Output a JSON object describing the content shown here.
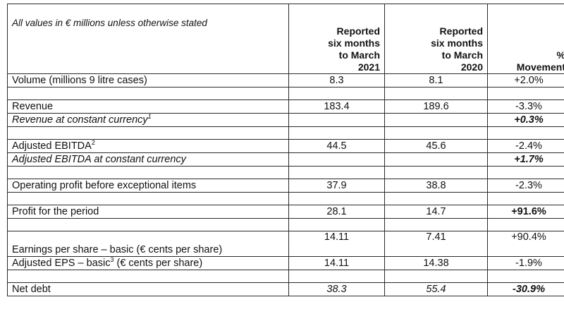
{
  "header": {
    "label": "All values in € millions unless otherwise stated",
    "col1": [
      "Reported",
      "six months",
      "to March",
      "2021"
    ],
    "col2": [
      "Reported",
      "six months",
      "to March",
      "2020"
    ],
    "col3": [
      "%",
      "Movement"
    ]
  },
  "rows": [
    {
      "label": "Volume (millions 9 litre cases)",
      "v2021": "8.3",
      "v2020": "8.1",
      "movement": "+2.0%"
    },
    {
      "label": "Revenue",
      "v2021": "183.4",
      "v2020": "189.6",
      "movement": "-3.3%"
    },
    {
      "label": "Revenue at constant currency",
      "sup": "1",
      "v2021": "",
      "v2020": "",
      "movement": "+0.3%"
    },
    {
      "label": "Adjusted EBITDA",
      "sup": "2",
      "v2021": "44.5",
      "v2020": "45.6",
      "movement": "-2.4%"
    },
    {
      "label": "Adjusted EBITDA at constant currency",
      "v2021": "",
      "v2020": "",
      "movement": "+1.7%"
    },
    {
      "label": "Operating profit before exceptional items",
      "v2021": "37.9",
      "v2020": "38.8",
      "movement": "-2.3%"
    },
    {
      "label": "Profit for the period",
      "v2021": "28.1",
      "v2020": "14.7",
      "movement": "+91.6%"
    },
    {
      "label": "Earnings per share – basic (€ cents per share)",
      "v2021": "14.11",
      "v2020": "7.41",
      "movement": "+90.4%"
    },
    {
      "label_pre": "Adjusted EPS – basic",
      "sup": "3",
      "label_post": " (€ cents per share)",
      "v2021": "14.11",
      "v2020": "14.38",
      "movement": "-1.9%"
    },
    {
      "label": "Net debt",
      "v2021": "38.3",
      "v2020": "55.4",
      "movement": "-30.9%"
    }
  ]
}
